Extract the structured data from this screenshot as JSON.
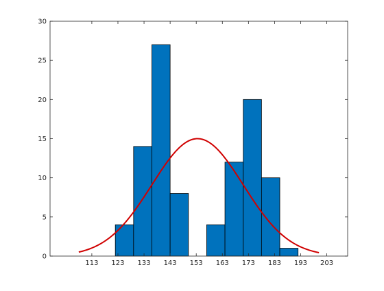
{
  "chart_data": {
    "type": "bar",
    "subtype": "histogram-with-normal-fit",
    "title": "",
    "xlabel": "",
    "ylabel": "",
    "xlim": [
      97,
      211
    ],
    "ylim": [
      0,
      30
    ],
    "bin_width": 7,
    "bins": [
      {
        "from": 122,
        "to": 129,
        "value": 4
      },
      {
        "from": 129,
        "to": 136,
        "value": 14
      },
      {
        "from": 136,
        "to": 143,
        "value": 27
      },
      {
        "from": 143,
        "to": 150,
        "value": 8
      },
      {
        "from": 150,
        "to": 157,
        "value": 0
      },
      {
        "from": 157,
        "to": 164,
        "value": 4
      },
      {
        "from": 164,
        "to": 171,
        "value": 12
      },
      {
        "from": 171,
        "to": 178,
        "value": 20
      },
      {
        "from": 178,
        "to": 185,
        "value": 10
      },
      {
        "from": 185,
        "to": 192,
        "value": 1
      }
    ],
    "x_ticks": [
      113,
      123,
      133,
      143,
      153,
      163,
      173,
      183,
      193,
      203
    ],
    "x_tick_labels": [
      "113",
      "123",
      "133",
      "143",
      "153",
      "163",
      "173",
      "183",
      "193",
      "203"
    ],
    "y_ticks": [
      0,
      5,
      10,
      15,
      20,
      25,
      30
    ],
    "y_tick_labels": [
      "0",
      "5",
      "10",
      "15",
      "20",
      "25",
      "30"
    ],
    "fit_curve": {
      "type": "normal",
      "mean": 153.5,
      "sd": 17.5,
      "peak": 15,
      "x_range": [
        108,
        200
      ]
    },
    "bar_color": "#0072BD",
    "bar_edge_color": "#000000",
    "curve_color": "#D00000",
    "grid": false,
    "box": true
  }
}
